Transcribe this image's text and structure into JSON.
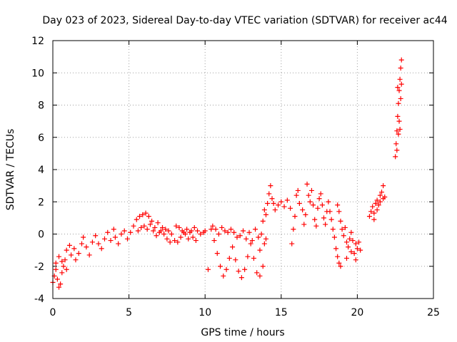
{
  "chart_data": {
    "type": "scatter",
    "title": "Day 023 of 2023, Sidereal Day-to-day VTEC variation (SDTVAR) for receiver ac44",
    "xlabel": "GPS time / hours",
    "ylabel": "SDTVAR / TECUs",
    "xlim": [
      0,
      25
    ],
    "ylim": [
      -4,
      12
    ],
    "xticks": [
      0,
      5,
      10,
      15,
      20,
      25
    ],
    "yticks": [
      -4,
      -2,
      0,
      2,
      4,
      6,
      8,
      10,
      12
    ],
    "xtick_labels": [
      "0",
      "5",
      "10",
      "15",
      "20",
      "25"
    ],
    "ytick_labels": [
      "-4",
      "-2",
      "0",
      "2",
      "4",
      "6",
      "8",
      "10",
      "12"
    ],
    "grid": true,
    "marker": "+",
    "series_color": "#ff0000",
    "series": [
      {
        "name": "SDTVAR",
        "points": [
          [
            0.0,
            -3.0
          ],
          [
            0.1,
            -2.6
          ],
          [
            0.2,
            -2.2
          ],
          [
            0.3,
            -2.8
          ],
          [
            0.4,
            -3.3
          ],
          [
            0.5,
            -3.1
          ],
          [
            0.6,
            -2.4
          ],
          [
            0.7,
            -2.0
          ],
          [
            0.8,
            -1.6
          ],
          [
            0.9,
            -2.2
          ],
          [
            0.2,
            -1.8
          ],
          [
            0.4,
            -1.4
          ],
          [
            0.6,
            -1.7
          ],
          [
            0.9,
            -1.0
          ],
          [
            1.1,
            -0.7
          ],
          [
            1.2,
            -1.3
          ],
          [
            1.4,
            -0.9
          ],
          [
            1.5,
            -1.6
          ],
          [
            1.7,
            -1.2
          ],
          [
            1.9,
            -0.6
          ],
          [
            2.0,
            -0.2
          ],
          [
            2.2,
            -0.8
          ],
          [
            2.4,
            -1.3
          ],
          [
            2.6,
            -0.5
          ],
          [
            2.8,
            -0.1
          ],
          [
            3.0,
            -0.6
          ],
          [
            3.2,
            -0.9
          ],
          [
            3.4,
            -0.3
          ],
          [
            3.6,
            0.1
          ],
          [
            3.8,
            -0.4
          ],
          [
            4.0,
            0.3
          ],
          [
            4.1,
            -0.2
          ],
          [
            4.3,
            -0.6
          ],
          [
            4.5,
            0.0
          ],
          [
            4.7,
            0.2
          ],
          [
            4.9,
            -0.3
          ],
          [
            5.1,
            0.1
          ],
          [
            5.3,
            0.5
          ],
          [
            5.5,
            0.9
          ],
          [
            5.7,
            1.1
          ],
          [
            5.9,
            1.2
          ],
          [
            6.1,
            1.3
          ],
          [
            6.3,
            1.1
          ],
          [
            6.5,
            0.8
          ],
          [
            6.7,
            0.4
          ],
          [
            6.9,
            0.7
          ],
          [
            7.1,
            0.2
          ],
          [
            7.3,
            0.0
          ],
          [
            7.5,
            -0.3
          ],
          [
            7.7,
            -0.5
          ],
          [
            5.6,
            0.2
          ],
          [
            5.8,
            0.4
          ],
          [
            6.0,
            0.5
          ],
          [
            6.2,
            0.3
          ],
          [
            6.4,
            0.6
          ],
          [
            6.6,
            0.2
          ],
          [
            6.8,
            -0.1
          ],
          [
            7.0,
            0.1
          ],
          [
            7.2,
            0.4
          ],
          [
            7.4,
            0.3
          ],
          [
            7.6,
            0.2
          ],
          [
            7.8,
            0.0
          ],
          [
            8.0,
            -0.4
          ],
          [
            8.2,
            -0.5
          ],
          [
            8.4,
            -0.2
          ],
          [
            8.6,
            0.1
          ],
          [
            8.8,
            0.3
          ],
          [
            9.0,
            0.1
          ],
          [
            9.2,
            -0.2
          ],
          [
            9.4,
            -0.4
          ],
          [
            8.1,
            0.5
          ],
          [
            8.3,
            0.4
          ],
          [
            8.5,
            0.2
          ],
          [
            8.7,
            0.0
          ],
          [
            8.9,
            -0.3
          ],
          [
            9.1,
            0.2
          ],
          [
            9.3,
            0.4
          ],
          [
            9.5,
            0.2
          ],
          [
            9.7,
            0.0
          ],
          [
            9.9,
            0.1
          ],
          [
            10.0,
            0.2
          ],
          [
            10.2,
            -2.2
          ],
          [
            10.4,
            0.3
          ],
          [
            10.6,
            -0.4
          ],
          [
            10.8,
            -1.2
          ],
          [
            11.0,
            -2.0
          ],
          [
            11.2,
            -2.6
          ],
          [
            11.4,
            -2.2
          ],
          [
            11.6,
            -1.5
          ],
          [
            11.8,
            -0.8
          ],
          [
            10.5,
            0.5
          ],
          [
            10.7,
            0.3
          ],
          [
            10.9,
            0.0
          ],
          [
            11.1,
            0.4
          ],
          [
            11.3,
            0.2
          ],
          [
            11.5,
            0.1
          ],
          [
            11.7,
            0.3
          ],
          [
            11.9,
            0.1
          ],
          [
            12.1,
            -0.2
          ],
          [
            12.3,
            -0.1
          ],
          [
            12.0,
            -1.6
          ],
          [
            12.2,
            -2.3
          ],
          [
            12.4,
            -2.7
          ],
          [
            12.6,
            -2.2
          ],
          [
            12.8,
            -1.4
          ],
          [
            13.0,
            -0.6
          ],
          [
            13.2,
            -1.5
          ],
          [
            13.4,
            -2.4
          ],
          [
            13.6,
            -2.6
          ],
          [
            13.8,
            -2.0
          ],
          [
            12.5,
            0.2
          ],
          [
            12.7,
            -0.3
          ],
          [
            12.9,
            0.1
          ],
          [
            13.1,
            -0.4
          ],
          [
            13.3,
            0.3
          ],
          [
            13.5,
            -0.2
          ],
          [
            13.7,
            0.0
          ],
          [
            13.9,
            -0.6
          ],
          [
            14.0,
            -0.3
          ],
          [
            13.6,
            -1.0
          ],
          [
            13.8,
            0.8
          ],
          [
            13.9,
            1.5
          ],
          [
            14.0,
            1.2
          ],
          [
            14.1,
            1.9
          ],
          [
            14.2,
            2.5
          ],
          [
            14.3,
            3.0
          ],
          [
            14.4,
            2.2
          ],
          [
            14.5,
            1.9
          ],
          [
            14.6,
            1.5
          ],
          [
            14.8,
            1.8
          ],
          [
            15.0,
            2.0
          ],
          [
            15.2,
            1.7
          ],
          [
            15.4,
            2.1
          ],
          [
            15.6,
            1.6
          ],
          [
            15.7,
            -0.6
          ],
          [
            15.8,
            0.3
          ],
          [
            15.9,
            1.1
          ],
          [
            16.0,
            2.4
          ],
          [
            16.1,
            2.7
          ],
          [
            16.2,
            1.9
          ],
          [
            16.4,
            1.5
          ],
          [
            16.5,
            0.6
          ],
          [
            16.6,
            1.2
          ],
          [
            16.7,
            3.1
          ],
          [
            16.8,
            2.4
          ],
          [
            16.9,
            2.0
          ],
          [
            17.0,
            2.7
          ],
          [
            17.1,
            1.8
          ],
          [
            17.2,
            0.9
          ],
          [
            17.3,
            0.5
          ],
          [
            17.4,
            1.6
          ],
          [
            17.5,
            2.2
          ],
          [
            17.6,
            2.5
          ],
          [
            17.7,
            1.8
          ],
          [
            17.8,
            1.0
          ],
          [
            17.9,
            0.6
          ],
          [
            18.0,
            1.4
          ],
          [
            18.1,
            2.0
          ],
          [
            18.2,
            1.4
          ],
          [
            18.3,
            0.9
          ],
          [
            18.4,
            0.3
          ],
          [
            18.5,
            -0.2
          ],
          [
            18.6,
            -0.9
          ],
          [
            18.7,
            -1.4
          ],
          [
            18.8,
            -1.8
          ],
          [
            18.9,
            -2.0
          ],
          [
            18.7,
            1.8
          ],
          [
            18.8,
            1.4
          ],
          [
            18.9,
            0.8
          ],
          [
            19.0,
            0.3
          ],
          [
            19.1,
            -0.1
          ],
          [
            19.2,
            0.4
          ],
          [
            19.3,
            -0.5
          ],
          [
            19.4,
            -0.8
          ],
          [
            19.5,
            -0.3
          ],
          [
            19.6,
            0.1
          ],
          [
            19.7,
            -0.4
          ],
          [
            19.8,
            -1.2
          ],
          [
            19.9,
            -1.6
          ],
          [
            20.0,
            -0.9
          ],
          [
            20.1,
            -0.5
          ],
          [
            20.2,
            -1.0
          ],
          [
            19.3,
            -1.5
          ],
          [
            19.6,
            -1.1
          ],
          [
            19.9,
            -0.6
          ],
          [
            20.8,
            1.1
          ],
          [
            20.9,
            1.4
          ],
          [
            21.0,
            1.7
          ],
          [
            21.1,
            1.3
          ],
          [
            21.2,
            1.9
          ],
          [
            21.3,
            2.1
          ],
          [
            21.4,
            1.8
          ],
          [
            21.5,
            2.4
          ],
          [
            21.6,
            2.6
          ],
          [
            21.7,
            3.0
          ],
          [
            21.8,
            2.3
          ],
          [
            21.1,
            0.9
          ],
          [
            21.3,
            1.5
          ],
          [
            21.5,
            2.0
          ],
          [
            21.7,
            2.2
          ],
          [
            22.5,
            4.8
          ],
          [
            22.55,
            5.6
          ],
          [
            22.6,
            6.4
          ],
          [
            22.65,
            7.3
          ],
          [
            22.7,
            8.1
          ],
          [
            22.75,
            8.9
          ],
          [
            22.8,
            9.6
          ],
          [
            22.85,
            10.3
          ],
          [
            22.9,
            10.8
          ],
          [
            22.7,
            6.2
          ],
          [
            22.8,
            6.5
          ],
          [
            22.6,
            5.2
          ],
          [
            22.75,
            7.0
          ],
          [
            22.9,
            9.3
          ],
          [
            22.85,
            8.4
          ],
          [
            22.65,
            9.1
          ]
        ]
      }
    ]
  }
}
